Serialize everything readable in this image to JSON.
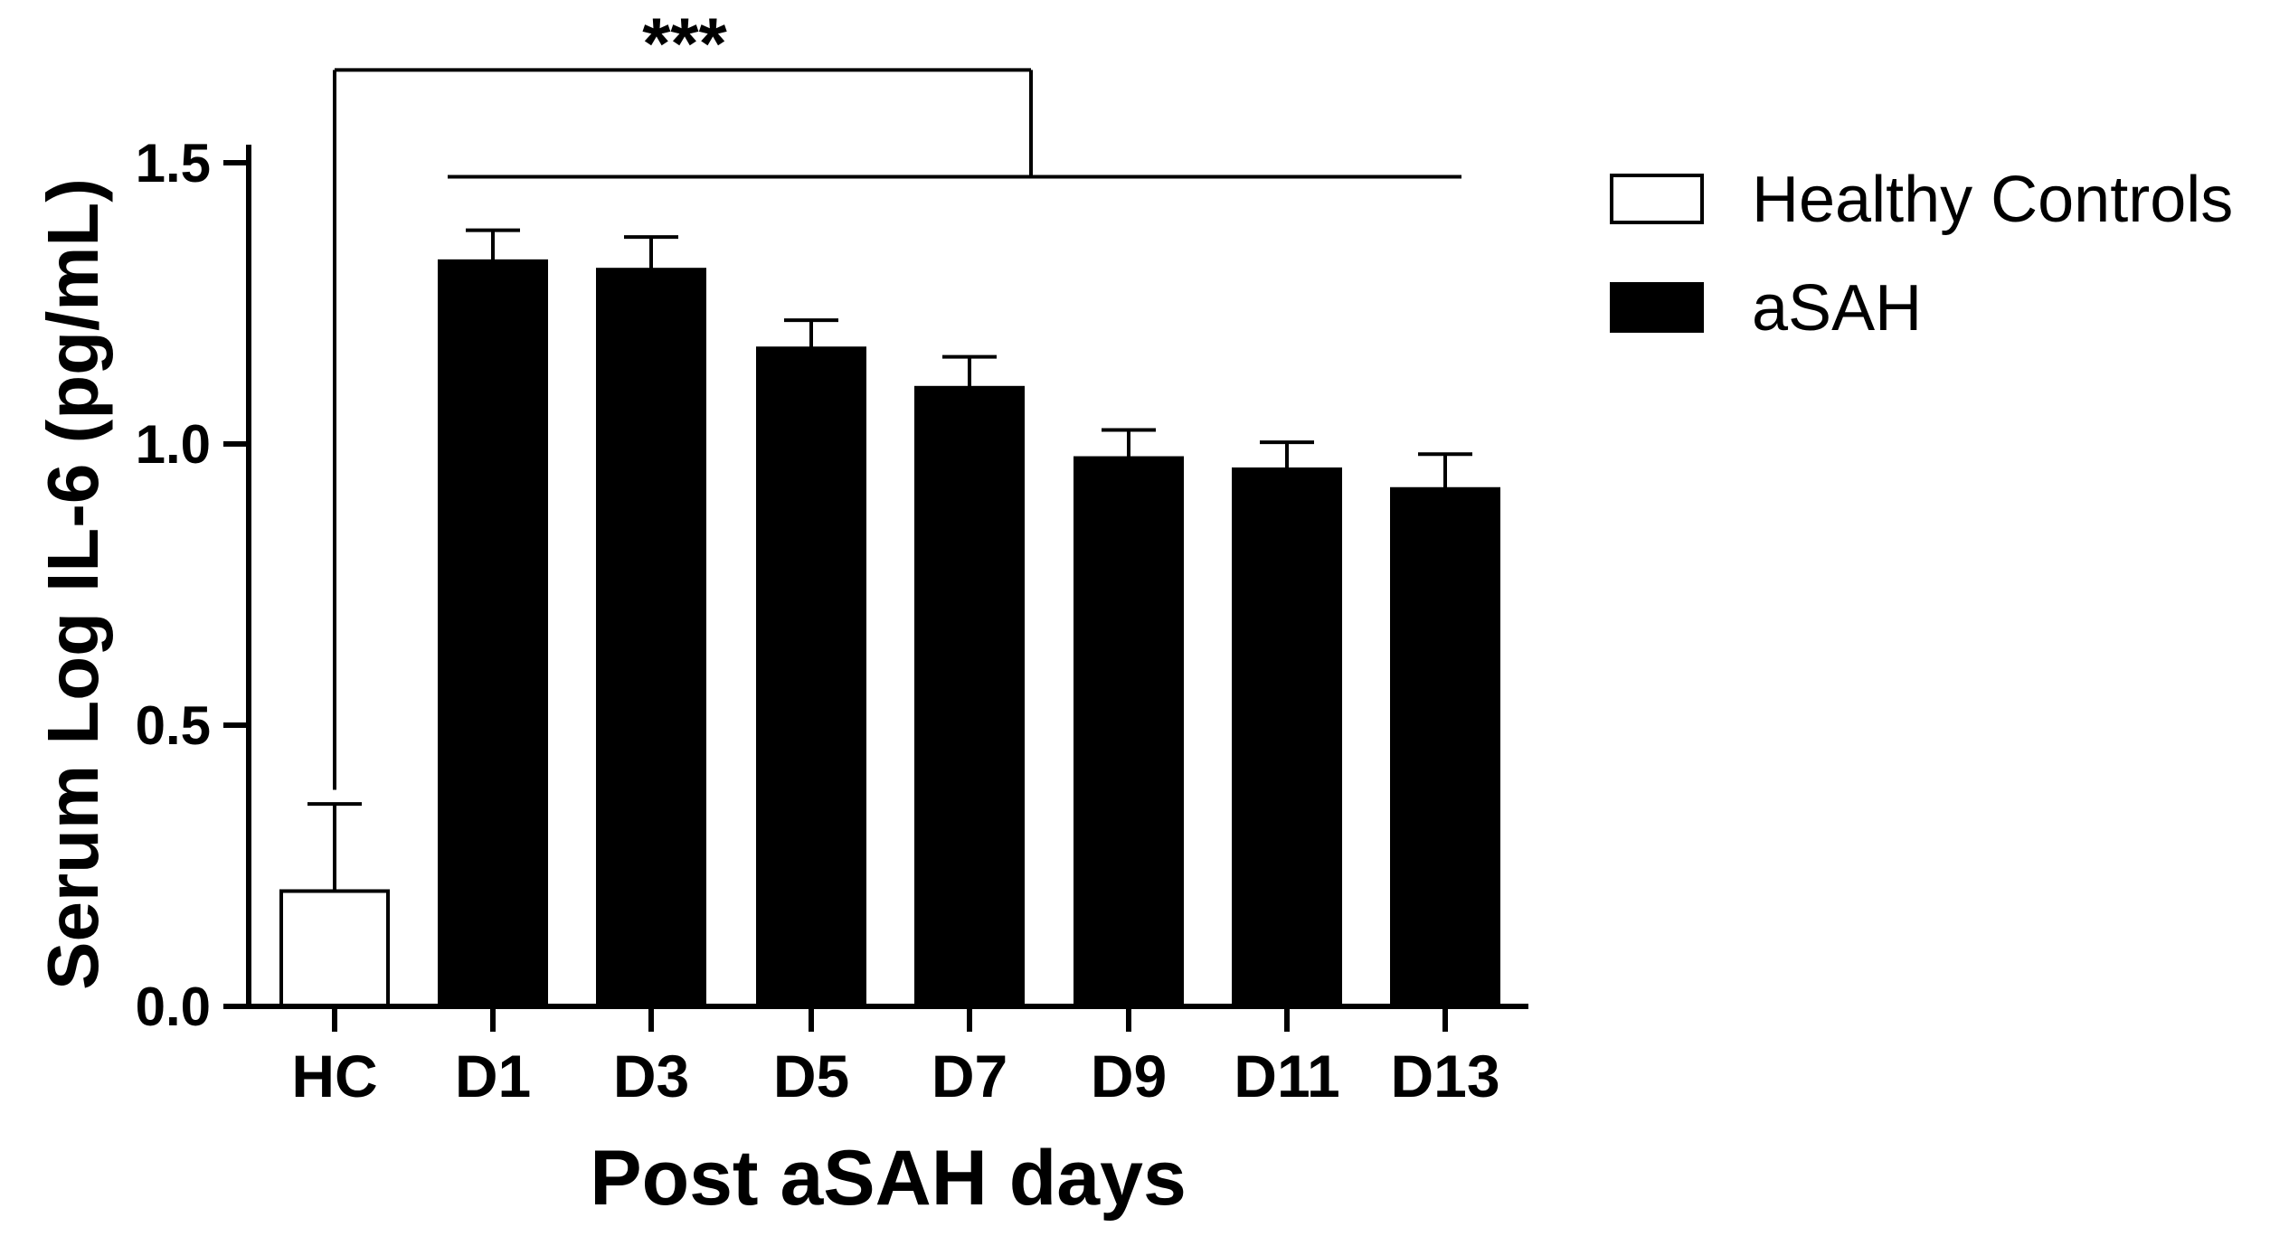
{
  "chart_data": {
    "type": "bar",
    "categories": [
      "HC",
      "D1",
      "D3",
      "D5",
      "D7",
      "D9",
      "D11",
      "D13"
    ],
    "series": [
      {
        "name": "Healthy Controls",
        "color": "#ffffff",
        "values": [
          0.205,
          null,
          null,
          null,
          null,
          null,
          null,
          null
        ],
        "errors": [
          0.155,
          null,
          null,
          null,
          null,
          null,
          null,
          null
        ]
      },
      {
        "name": "aSAH",
        "color": "#000000",
        "values": [
          null,
          1.325,
          1.31,
          1.17,
          1.1,
          0.975,
          0.955,
          0.92
        ],
        "errors": [
          null,
          0.055,
          0.058,
          0.05,
          0.055,
          0.05,
          0.048,
          0.062
        ]
      }
    ],
    "title": "",
    "xlabel": "Post aSAH days",
    "ylabel": "Serum Log IL-6 (pg/mL)",
    "ylim": [
      0,
      1.5
    ],
    "yticks": [
      0,
      0.5,
      1.0,
      1.5
    ],
    "ytick_labels": [
      "0.0",
      "0.5",
      "1.0",
      "1.5"
    ],
    "grid": false,
    "legend_position": "top-right",
    "annotation": {
      "text": "***",
      "from_category": "HC",
      "to_categories": [
        "D1",
        "D13"
      ]
    }
  }
}
